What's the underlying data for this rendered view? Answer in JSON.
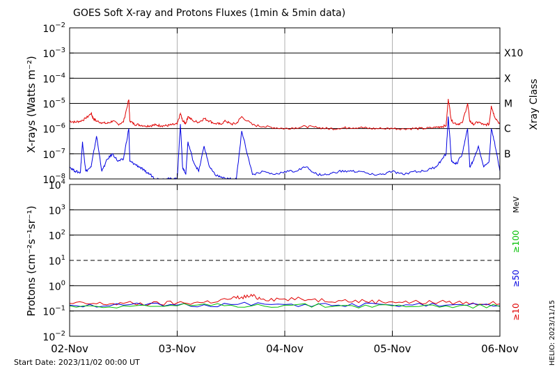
{
  "chart_data": [
    {
      "type": "line",
      "title": "GOES Soft X-ray and Protons Fluxes   (1min & 5min data)",
      "ylabel": "X-rays (Watts m⁻²)",
      "yscale": "log",
      "ylim": [
        1e-08,
        0.01
      ],
      "xlim": [
        0,
        4
      ],
      "x_tick_labels": [
        "02-Nov",
        "03-Nov",
        "04-Nov",
        "05-Nov",
        "06-Nov"
      ],
      "y_ticks": [
        {
          "base": "10",
          "exp": "−8",
          "value": 1e-08
        },
        {
          "base": "10",
          "exp": "−7",
          "value": 1e-07
        },
        {
          "base": "10",
          "exp": "−6",
          "value": 1e-06
        },
        {
          "base": "10",
          "exp": "−5",
          "value": 1e-05
        },
        {
          "base": "10",
          "exp": "−4",
          "value": 0.0001
        },
        {
          "base": "10",
          "exp": "−3",
          "value": 0.001
        },
        {
          "base": "10",
          "exp": "−2",
          "value": 0.01
        }
      ],
      "right_axis_label": "Xray Class",
      "class_labels": [
        {
          "label": "X10",
          "value": 0.001
        },
        {
          "label": "X",
          "value": 0.0001
        },
        {
          "label": "M",
          "value": 1e-05
        },
        {
          "label": "C",
          "value": 1e-06
        },
        {
          "label": "B",
          "value": 1e-07
        }
      ],
      "grid": "horizontal at decades, vertical at day boundaries",
      "series": [
        {
          "color": "#e00000",
          "x": [
            0,
            0.05,
            0.1,
            0.15,
            0.2,
            0.22,
            0.25,
            0.3,
            0.35,
            0.4,
            0.45,
            0.5,
            0.55,
            0.56,
            0.6,
            0.65,
            0.7,
            0.75,
            0.8,
            0.85,
            0.9,
            0.95,
            1.0,
            1.03,
            1.05,
            1.08,
            1.1,
            1.15,
            1.2,
            1.25,
            1.3,
            1.35,
            1.4,
            1.45,
            1.5,
            1.55,
            1.6,
            1.7,
            1.8,
            1.9,
            2.0,
            2.1,
            2.2,
            2.3,
            2.4,
            2.5,
            2.6,
            2.7,
            2.8,
            2.9,
            3.0,
            3.1,
            3.2,
            3.3,
            3.4,
            3.45,
            3.5,
            3.52,
            3.55,
            3.6,
            3.65,
            3.7,
            3.72,
            3.75,
            3.8,
            3.85,
            3.9,
            3.92,
            3.95,
            4.0
          ],
          "y": [
            2e-06,
            1.8e-06,
            2e-06,
            2.5e-06,
            4e-06,
            2.5e-06,
            2e-06,
            1.7e-06,
            1.6e-06,
            2e-06,
            1.5e-06,
            1.8e-06,
            1.4e-05,
            2e-06,
            1.5e-06,
            1.4e-06,
            1.3e-06,
            1.3e-06,
            1.4e-06,
            1.3e-06,
            1.3e-06,
            1.4e-06,
            1.5e-06,
            4e-06,
            2e-06,
            1.6e-06,
            3e-06,
            2e-06,
            1.8e-06,
            2.5e-06,
            2e-06,
            1.6e-06,
            1.5e-06,
            2e-06,
            1.5e-06,
            1.6e-06,
            3e-06,
            1.4e-06,
            1.2e-06,
            1.1e-06,
            1e-06,
            1.1e-06,
            1.2e-06,
            1.1e-06,
            1e-06,
            1e-06,
            1.1e-06,
            1.1e-06,
            1e-06,
            1e-06,
            1e-06,
            1e-06,
            1e-06,
            1e-06,
            1.1e-06,
            1.2e-06,
            1.3e-06,
            1.5e-05,
            2e-06,
            1.5e-06,
            1.7e-06,
            1e-05,
            2e-06,
            1.5e-06,
            1.8e-06,
            1.4e-06,
            1.5e-06,
            8e-06,
            3e-06,
            1.5e-06
          ]
        },
        {
          "color": "#0000e0",
          "x": [
            0,
            0.05,
            0.1,
            0.12,
            0.15,
            0.2,
            0.25,
            0.3,
            0.35,
            0.4,
            0.45,
            0.5,
            0.55,
            0.56,
            0.6,
            0.65,
            0.7,
            0.75,
            0.8,
            0.85,
            0.9,
            0.95,
            1.0,
            1.03,
            1.05,
            1.08,
            1.1,
            1.15,
            1.2,
            1.25,
            1.3,
            1.35,
            1.4,
            1.45,
            1.5,
            1.55,
            1.6,
            1.7,
            1.8,
            1.9,
            2.0,
            2.1,
            2.2,
            2.3,
            2.4,
            2.5,
            2.6,
            2.7,
            2.8,
            2.9,
            3.0,
            3.1,
            3.2,
            3.3,
            3.4,
            3.45,
            3.5,
            3.52,
            3.55,
            3.6,
            3.65,
            3.7,
            3.72,
            3.75,
            3.8,
            3.85,
            3.9,
            3.92,
            3.95,
            4.0
          ],
          "y": [
            3e-08,
            2e-08,
            1.8e-08,
            3e-07,
            2e-08,
            3e-08,
            5e-07,
            2e-08,
            6e-08,
            1e-07,
            5e-08,
            6e-08,
            1e-06,
            5e-08,
            4e-08,
            3e-08,
            2e-08,
            1.5e-08,
            1e-08,
            1e-08,
            1e-08,
            1e-08,
            1e-08,
            1.5e-06,
            3e-08,
            1.5e-08,
            3e-07,
            5e-08,
            2e-08,
            2e-07,
            3e-08,
            1.5e-08,
            1.2e-08,
            1e-08,
            1e-08,
            1e-08,
            8e-07,
            1.5e-08,
            2e-08,
            1.5e-08,
            2e-08,
            2e-08,
            3e-08,
            1.5e-08,
            1.5e-08,
            2e-08,
            2e-08,
            2e-08,
            1.5e-08,
            1.5e-08,
            2e-08,
            1.5e-08,
            2e-08,
            2e-08,
            3e-08,
            5e-08,
            1e-07,
            3e-06,
            5e-08,
            4e-08,
            1e-07,
            1e-06,
            3e-08,
            5e-08,
            2e-07,
            3e-08,
            5e-08,
            1e-06,
            3e-07,
            2e-08
          ]
        }
      ]
    },
    {
      "type": "line",
      "ylabel": "Protons (cm⁻²s⁻¹sr⁻¹)",
      "yscale": "log",
      "ylim": [
        0.01,
        10000
      ],
      "xlim": [
        0,
        4
      ],
      "x_tick_labels": [
        "02-Nov",
        "03-Nov",
        "04-Nov",
        "05-Nov",
        "06-Nov"
      ],
      "y_ticks": [
        {
          "base": "10",
          "exp": "−2",
          "value": 0.01
        },
        {
          "base": "10",
          "exp": "−1",
          "value": 0.1
        },
        {
          "base": "10",
          "exp": "0",
          "value": 1
        },
        {
          "base": "10",
          "exp": "1",
          "value": 10
        },
        {
          "base": "10",
          "exp": "2",
          "value": 100
        },
        {
          "base": "10",
          "exp": "3",
          "value": 1000
        },
        {
          "base": "10",
          "exp": "4",
          "value": 10000
        }
      ],
      "unit_label": "MeV",
      "threshold_line": {
        "value": 10,
        "style": "dashed"
      },
      "series": [
        {
          "name": "≥10",
          "color": "#e00000",
          "x": [
            0,
            0.25,
            0.5,
            0.75,
            1.0,
            1.25,
            1.5,
            1.6,
            1.7,
            1.8,
            2.0,
            2.25,
            2.5,
            2.75,
            3.0,
            3.25,
            3.5,
            3.75,
            4.0
          ],
          "y": [
            0.2,
            0.19,
            0.2,
            0.19,
            0.21,
            0.22,
            0.3,
            0.36,
            0.38,
            0.3,
            0.3,
            0.28,
            0.26,
            0.24,
            0.23,
            0.22,
            0.22,
            0.21,
            0.19
          ]
        },
        {
          "name": "≥50",
          "color": "#0000e0",
          "x": [
            0,
            0.5,
            1.0,
            1.5,
            2.0,
            2.5,
            3.0,
            3.5,
            4.0
          ],
          "y": [
            0.17,
            0.17,
            0.17,
            0.18,
            0.18,
            0.17,
            0.17,
            0.17,
            0.16
          ]
        },
        {
          "name": "≥100",
          "color": "#00c000",
          "x": [
            0,
            0.5,
            1.0,
            1.5,
            2.0,
            2.5,
            3.0,
            3.5,
            4.0
          ],
          "y": [
            0.16,
            0.16,
            0.16,
            0.17,
            0.17,
            0.16,
            0.16,
            0.16,
            0.15
          ]
        }
      ]
    }
  ],
  "footer": {
    "start_date": "Start Date: 2023/11/02 00:00 UT",
    "credit": "HELIO: 2023/11/15"
  }
}
